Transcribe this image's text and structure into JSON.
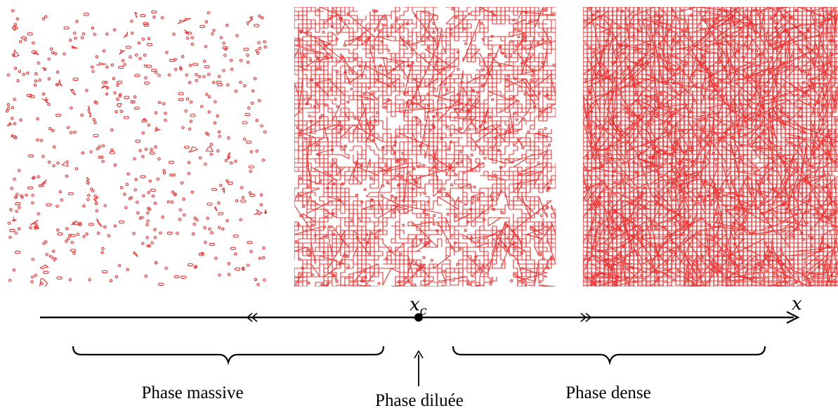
{
  "axis": {
    "variable_label": "x",
    "critical_point_label": "x",
    "critical_point_subscript": "c"
  },
  "phases": {
    "massive": "Phase massive",
    "diluee": "Phase diluée",
    "dense": "Phase dense"
  },
  "loop_panels": [
    {
      "phase": "massive",
      "density": 0.06
    },
    {
      "phase": "diluee",
      "density": 0.5
    },
    {
      "phase": "dense",
      "density": 1.0
    }
  ],
  "colors": {
    "loop": "#ee3333",
    "axis": "#000000",
    "background": "#ffffff"
  }
}
